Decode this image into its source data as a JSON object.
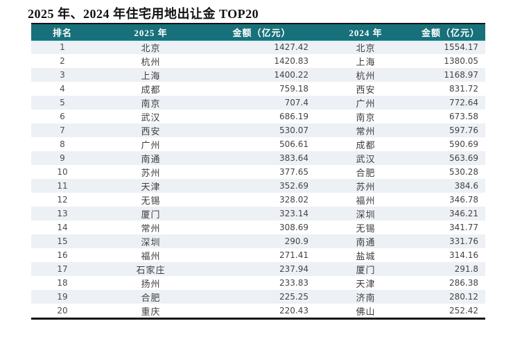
{
  "title": "2025 年、2024 年住宅用地出让金 TOP20",
  "colors": {
    "header_bg": "#17707a",
    "header_text": "#ffffff",
    "header_bottom_edge": "#2fa2aa",
    "alt_row_bg": "#edf1f6",
    "row_bg": "#ffffff",
    "rule_color": "#141414",
    "body_text": "#3d3d3d"
  },
  "chart_data": {
    "type": "table",
    "title": "2025 年、2024 年住宅用地出让金 TOP20",
    "columns": [
      "排名",
      "2025 年",
      "金额（亿元）",
      "2024 年",
      "金额（亿元）"
    ],
    "rows": [
      [
        "1",
        "北京",
        "1427.42",
        "北京",
        "1554.17"
      ],
      [
        "2",
        "杭州",
        "1420.83",
        "上海",
        "1380.05"
      ],
      [
        "3",
        "上海",
        "1400.22",
        "杭州",
        "1168.97"
      ],
      [
        "4",
        "成都",
        "759.18",
        "西安",
        "831.72"
      ],
      [
        "5",
        "南京",
        "707.4",
        "广州",
        "772.64"
      ],
      [
        "6",
        "武汉",
        "686.19",
        "南京",
        "673.58"
      ],
      [
        "7",
        "西安",
        "530.07",
        "常州",
        "597.76"
      ],
      [
        "8",
        "广州",
        "506.61",
        "成都",
        "590.69"
      ],
      [
        "9",
        "南通",
        "383.64",
        "武汉",
        "563.69"
      ],
      [
        "10",
        "苏州",
        "377.65",
        "合肥",
        "530.28"
      ],
      [
        "11",
        "天津",
        "352.69",
        "苏州",
        "384.6"
      ],
      [
        "12",
        "无锡",
        "328.02",
        "福州",
        "346.78"
      ],
      [
        "13",
        "厦门",
        "323.14",
        "深圳",
        "346.21"
      ],
      [
        "14",
        "常州",
        "308.69",
        "无锡",
        "341.77"
      ],
      [
        "15",
        "深圳",
        "290.9",
        "南通",
        "331.76"
      ],
      [
        "16",
        "福州",
        "271.41",
        "盐城",
        "314.16"
      ],
      [
        "17",
        "石家庄",
        "237.94",
        "厦门",
        "291.8"
      ],
      [
        "18",
        "扬州",
        "233.83",
        "天津",
        "286.38"
      ],
      [
        "19",
        "合肥",
        "225.25",
        "济南",
        "280.12"
      ],
      [
        "20",
        "重庆",
        "220.43",
        "佛山",
        "252.42"
      ]
    ]
  }
}
